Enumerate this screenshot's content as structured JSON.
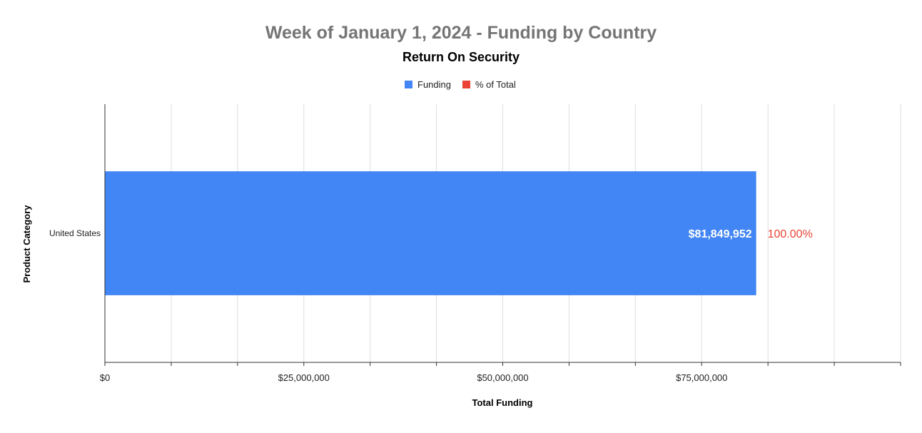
{
  "chart_data": {
    "type": "bar",
    "orientation": "horizontal",
    "title": "Week of January 1, 2024 - Funding by Country",
    "subtitle": "Return On Security",
    "xlabel": "Total Funding",
    "ylabel": "Product Category",
    "categories": [
      "United States"
    ],
    "series": [
      {
        "name": "Funding",
        "values": [
          81849952
        ],
        "data_labels": [
          "$81,849,952"
        ],
        "color": "#4285f4"
      },
      {
        "name": "% of Total",
        "values": [
          100.0
        ],
        "data_labels": [
          "100.00%"
        ],
        "color": "#ea4335"
      }
    ],
    "xlim": [
      0,
      100000000
    ],
    "x_ticks": [
      {
        "value": 0,
        "label": "$0"
      },
      {
        "value": 25000000,
        "label": "$25,000,000"
      },
      {
        "value": 50000000,
        "label": "$50,000,000"
      },
      {
        "value": 75000000,
        "label": "$75,000,000"
      }
    ],
    "minor_gridlines_between_ticks": 2,
    "grid": true,
    "legend_position": "top-center",
    "colors": {
      "title": "#757575",
      "subtitle": "#000000",
      "axis_text": "#222222",
      "gridline": "#dddddd",
      "axis_line": "#333333"
    }
  }
}
